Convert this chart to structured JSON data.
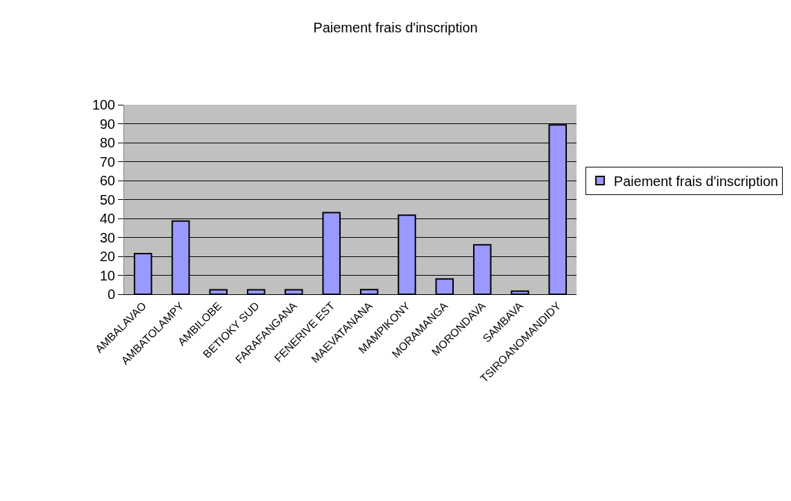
{
  "chart_data": {
    "type": "bar",
    "title": "Paiement frais d'inscription",
    "categories": [
      "AMBALAVAO",
      "AMBATOLAMPY",
      "AMBILOBE",
      "BETIOKY SUD",
      "FARAFANGANA",
      "FENERIVE EST",
      "MAEVATANANA",
      "MAMPIKONY",
      "MORAMANGA",
      "MORONDAVA",
      "SAMBAVA",
      "TSIROANOMANDIDY"
    ],
    "series": [
      {
        "name": "Paiement frais d'inscription",
        "color": "#9999ff",
        "values": [
          21.5,
          38.6,
          2.4,
          2.4,
          2.4,
          43.1,
          2.5,
          41.7,
          8.1,
          26.1,
          1.6,
          89.4
        ]
      }
    ],
    "ylim": [
      0,
      100
    ],
    "yticks": [
      0,
      10,
      20,
      30,
      40,
      50,
      60,
      70,
      80,
      90,
      100
    ],
    "grid": "y",
    "legend": "right"
  }
}
